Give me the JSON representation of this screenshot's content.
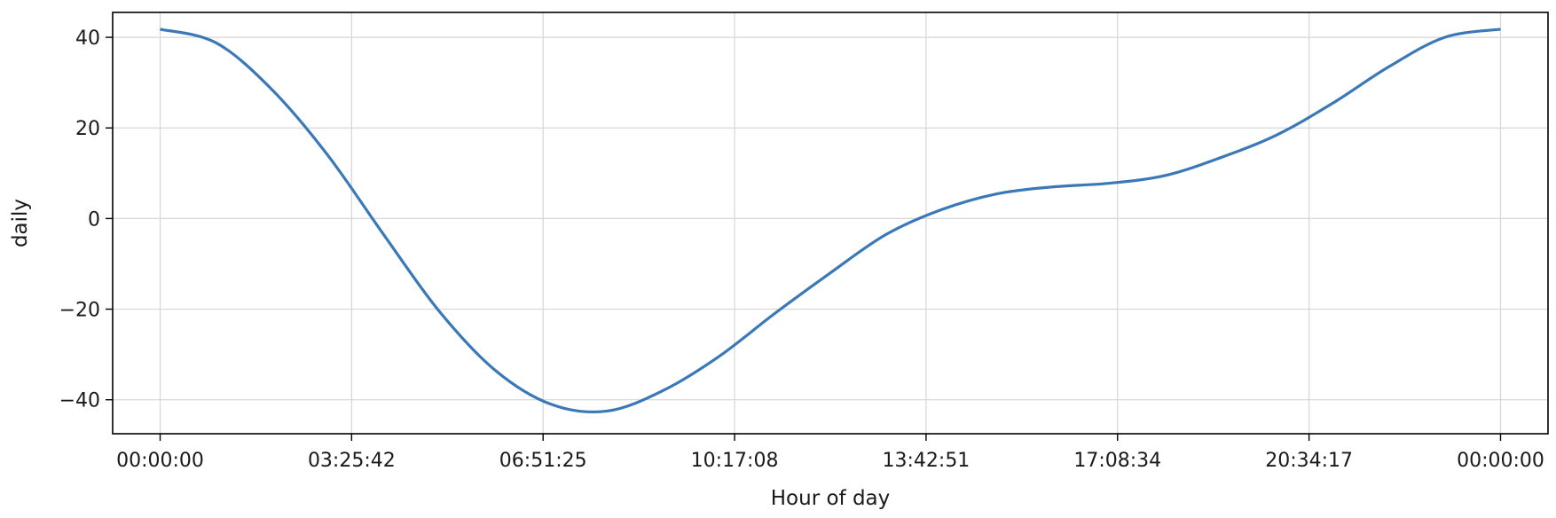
{
  "chart_data": {
    "type": "line",
    "title": "",
    "xlabel": "Hour of day",
    "ylabel": "daily",
    "xlim_hours": [
      -0.85,
      24.85
    ],
    "ylim": [
      -47.5,
      45.5
    ],
    "grid": true,
    "x_ticks": [
      {
        "value": 0,
        "label": "00:00:00"
      },
      {
        "value": 3.4283,
        "label": "03:25:42"
      },
      {
        "value": 6.8569,
        "label": "06:51:25"
      },
      {
        "value": 10.2856,
        "label": "10:17:08"
      },
      {
        "value": 13.7142,
        "label": "13:42:51"
      },
      {
        "value": 17.1428,
        "label": "17:08:34"
      },
      {
        "value": 20.5714,
        "label": "20:34:17"
      },
      {
        "value": 24,
        "label": "00:00:00"
      }
    ],
    "y_ticks": [
      {
        "value": 40,
        "label": "40"
      },
      {
        "value": 20,
        "label": "20"
      },
      {
        "value": 0,
        "label": "0"
      },
      {
        "value": -20,
        "label": "−20"
      },
      {
        "value": -40,
        "label": "−40"
      }
    ],
    "series": [
      {
        "color": "#3a78b7",
        "x": [
          0,
          1,
          2,
          3,
          4,
          5,
          6,
          7,
          8,
          9,
          10,
          11,
          12,
          13,
          14,
          15,
          16,
          17,
          18,
          19,
          20,
          21,
          22,
          23,
          24
        ],
        "y": [
          41.8,
          38.8,
          28.5,
          14.0,
          -3.5,
          -20.5,
          -33.5,
          -41.0,
          -42.5,
          -38.0,
          -30.5,
          -21.0,
          -12.0,
          -3.5,
          2.0,
          5.5,
          7.0,
          7.8,
          9.5,
          13.5,
          18.5,
          25.5,
          33.5,
          40.0,
          41.8
        ]
      }
    ]
  }
}
